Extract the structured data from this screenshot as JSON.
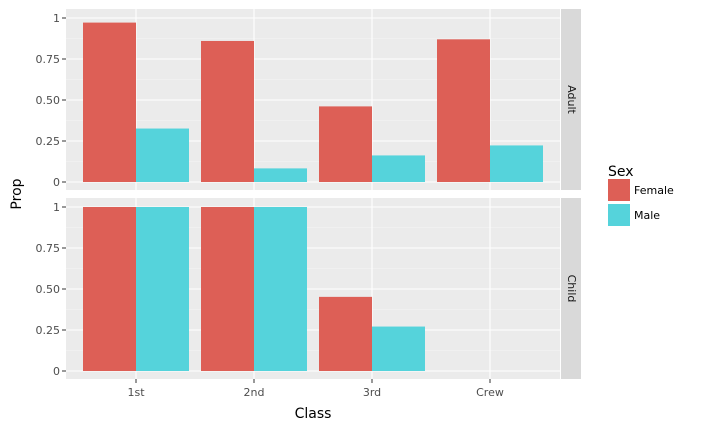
{
  "chart_data": {
    "type": "bar",
    "title": "",
    "xlabel": "Class",
    "ylabel": "Prop",
    "categories": [
      "1st",
      "2nd",
      "3rd",
      "Crew"
    ],
    "y_ticks": [
      0,
      0.25,
      0.5,
      0.75,
      1
    ],
    "y_tick_labels": [
      "0",
      "0.25",
      "0.50",
      "0.75",
      "1"
    ],
    "ylim": [
      0,
      1
    ],
    "grid": true,
    "legend": {
      "title": "Sex",
      "placement": "right",
      "entries": [
        {
          "name": "Female",
          "color": "#DD5F56"
        },
        {
          "name": "Male",
          "color": "#55D3DB"
        }
      ]
    },
    "facets": [
      {
        "label": "Adult",
        "series": [
          {
            "name": "Female",
            "color": "#DD5F56",
            "values": [
              0.972,
              0.86,
              0.461,
              0.87
            ]
          },
          {
            "name": "Male",
            "color": "#55D3DB",
            "values": [
              0.326,
              0.083,
              0.162,
              0.223
            ]
          }
        ]
      },
      {
        "label": "Child",
        "series": [
          {
            "name": "Female",
            "color": "#DD5F56",
            "values": [
              1.0,
              1.0,
              0.452,
              null
            ]
          },
          {
            "name": "Male",
            "color": "#55D3DB",
            "values": [
              1.0,
              1.0,
              0.271,
              null
            ]
          }
        ]
      }
    ]
  }
}
